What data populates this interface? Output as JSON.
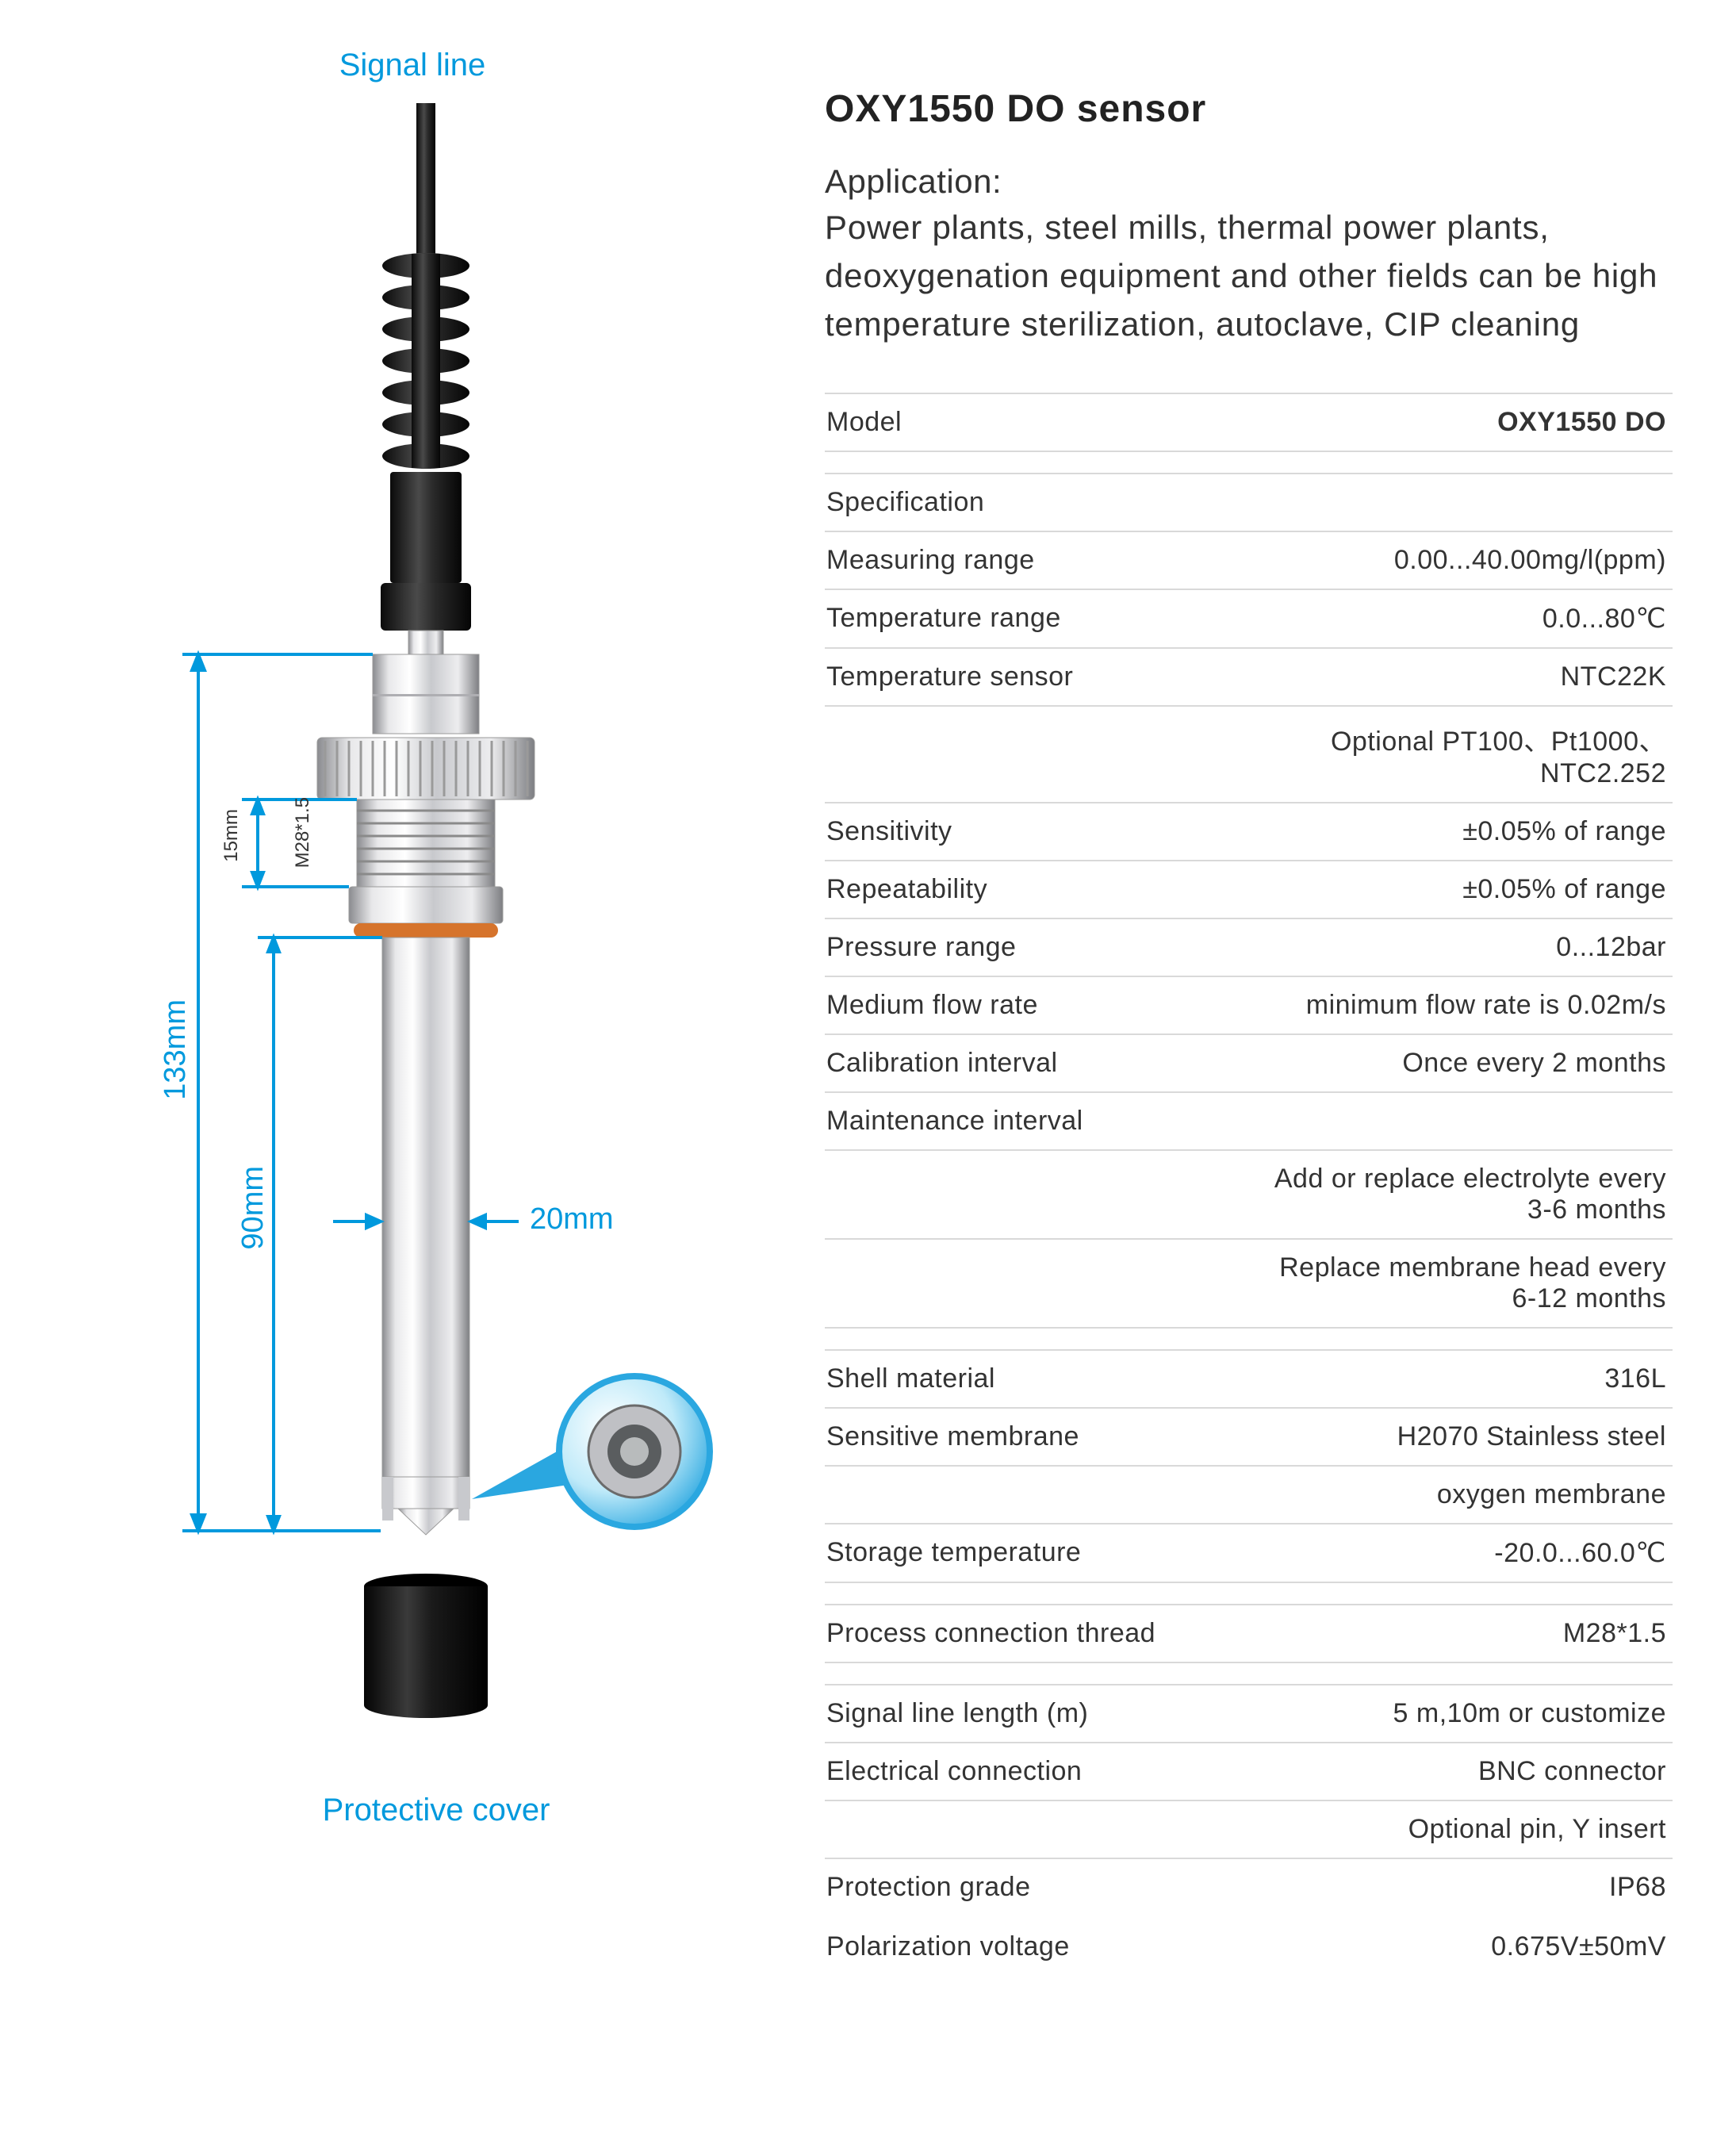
{
  "diagram": {
    "signal_line_label": "Signal line",
    "protective_cover_label": "Protective cover",
    "dims": {
      "overall_length": "133mm",
      "shaft_length": "90mm",
      "thread_section": "15mm",
      "thread_spec": "M28*1.5",
      "diameter": "20mm"
    },
    "colors": {
      "accent_blue": "#0099dd",
      "metal_light": "#e8e8ea",
      "metal_mid": "#bfc0c4",
      "metal_dark": "#8a8b8f",
      "cable": "#2a2a2a",
      "oring": "#d6742c",
      "cap": "#1f1f1f",
      "bubble_ring": "#2aa7e0"
    }
  },
  "header": {
    "title": "OXY1550 DO  sensor",
    "application_heading": "Application:",
    "application_text": "Power plants, steel mills, thermal power plants, deoxygenation equipment and other fields can be high temperature sterilization, autoclave, CIP cleaning"
  },
  "spec_table": {
    "rows": [
      {
        "label": "Model",
        "value": "OXY1550 DO",
        "bold": true,
        "after_spacer": true
      },
      {
        "label": "Specification",
        "value": ""
      },
      {
        "label": "Measuring range",
        "value": "0.00...40.00mg/l(ppm)"
      },
      {
        "label": "Temperature range",
        "value": "0.0...80℃"
      },
      {
        "label": "Temperature sensor",
        "value": "NTC22K"
      },
      {
        "label": "",
        "value": "Optional PT100、Pt1000、NTC2.252"
      },
      {
        "label": "Sensitivity",
        "value": "±0.05% of range"
      },
      {
        "label": "Repeatability",
        "value": "±0.05% of range"
      },
      {
        "label": "Pressure range",
        "value": "0...12bar"
      },
      {
        "label": "Medium flow rate",
        "value": "minimum flow rate is 0.02m/s"
      },
      {
        "label": "Calibration interval",
        "value": "Once every 2 months"
      },
      {
        "label": "Maintenance interval",
        "value": ""
      },
      {
        "label": "",
        "value": "Add or replace electrolyte every 3-6 months"
      },
      {
        "label": "",
        "value": "Replace membrane head every 6-12 months",
        "after_spacer": true
      },
      {
        "label": "Shell material",
        "value": "316L"
      },
      {
        "label": "Sensitive membrane",
        "value": "H2070 Stainless steel"
      },
      {
        "label": "",
        "value": "oxygen membrane"
      },
      {
        "label": "Storage temperature",
        "value": "-20.0...60.0℃",
        "after_spacer": true
      },
      {
        "label": "Process connection thread",
        "value": "M28*1.5",
        "after_spacer": true
      },
      {
        "label": "Signal line length (m)",
        "value": "5 m,10m or customize"
      },
      {
        "label": "Electrical connection",
        "value": "BNC connector"
      },
      {
        "label": "",
        "value": "Optional pin, Y insert"
      },
      {
        "label": "Protection grade",
        "value": "IP68",
        "noborder": true
      },
      {
        "label": "Polarization voltage",
        "value": "0.675V±50mV",
        "noborder": true
      }
    ]
  }
}
